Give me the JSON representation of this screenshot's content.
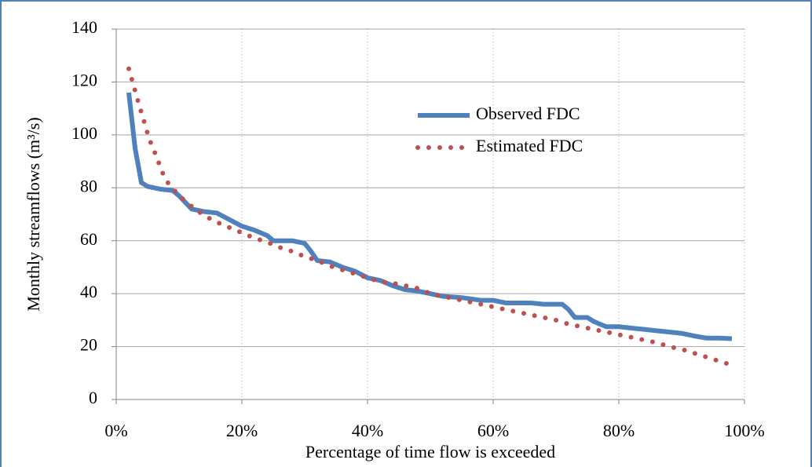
{
  "chart_data": {
    "type": "line",
    "x_label": "Percentage of time flow is exceeded",
    "y_label": "Monthly streamflows (m³/s)",
    "xlim": [
      0,
      100
    ],
    "xticks": [
      {
        "value": 0,
        "label": "0%"
      },
      {
        "value": 20,
        "label": "20%"
      },
      {
        "value": 40,
        "label": "40%"
      },
      {
        "value": 60,
        "label": "60%"
      },
      {
        "value": 80,
        "label": "80%"
      },
      {
        "value": 100,
        "label": "100%"
      }
    ],
    "ylim": [
      0,
      140
    ],
    "yticks": [
      0,
      20,
      40,
      60,
      80,
      100,
      120,
      140
    ],
    "grid": true,
    "legend": "upper-right",
    "series": [
      {
        "name": "Observed FDC",
        "color": "#4f81bd",
        "style": "solid",
        "x": [
          2,
          3,
          4,
          5,
          7,
          9,
          10,
          12,
          14,
          16,
          18,
          20,
          22,
          24,
          25,
          28,
          30,
          31,
          32,
          34,
          36,
          38,
          40,
          42,
          44,
          46,
          48,
          50,
          52,
          55,
          58,
          60,
          62,
          66,
          68,
          71,
          72,
          73,
          75,
          76,
          78,
          80,
          82,
          84,
          86,
          88,
          90,
          92,
          94,
          96,
          98
        ],
        "values": [
          116,
          95,
          82,
          80.5,
          79.5,
          79,
          77,
          72,
          71,
          70.5,
          68,
          65.5,
          64,
          62,
          60,
          60,
          59,
          56,
          52.5,
          52,
          50,
          48.5,
          46,
          45,
          43,
          41.5,
          41,
          40,
          39,
          38.5,
          37.5,
          37.5,
          36.5,
          36.5,
          36,
          36,
          34,
          31,
          31,
          29.5,
          27.5,
          27.5,
          27,
          26.5,
          26,
          25.5,
          25,
          24,
          23.2,
          23.2,
          23
        ]
      },
      {
        "name": "Estimated FDC",
        "color": "#c0504d",
        "style": "dotted",
        "x": [
          2,
          2.6,
          3.2,
          3.8,
          4.2,
          4.8,
          5.5,
          6.2,
          7,
          7.5,
          8.2,
          10,
          12,
          14,
          16,
          18,
          20,
          22,
          24,
          26,
          28,
          30,
          32,
          34,
          36,
          38,
          40,
          42,
          44,
          46,
          48,
          50,
          52,
          54,
          56,
          58,
          60,
          62,
          64,
          66,
          68,
          70,
          72,
          74,
          76,
          78,
          80,
          82,
          84,
          86,
          88,
          90,
          92,
          94,
          96,
          98
        ],
        "values": [
          125,
          120,
          115,
          110,
          107,
          102,
          97,
          93,
          88,
          85,
          82,
          77,
          73,
          69.5,
          67,
          65,
          63,
          61,
          59.5,
          57.5,
          56,
          54,
          52.5,
          50.5,
          49,
          47.5,
          46,
          44.5,
          44,
          43,
          42,
          40,
          39,
          38,
          37,
          36,
          35,
          34,
          33,
          32,
          31,
          30,
          28.5,
          27.5,
          26.5,
          25.5,
          24.5,
          23.5,
          22.5,
          21.5,
          20,
          19,
          17.5,
          16,
          14.5,
          13
        ]
      }
    ]
  }
}
